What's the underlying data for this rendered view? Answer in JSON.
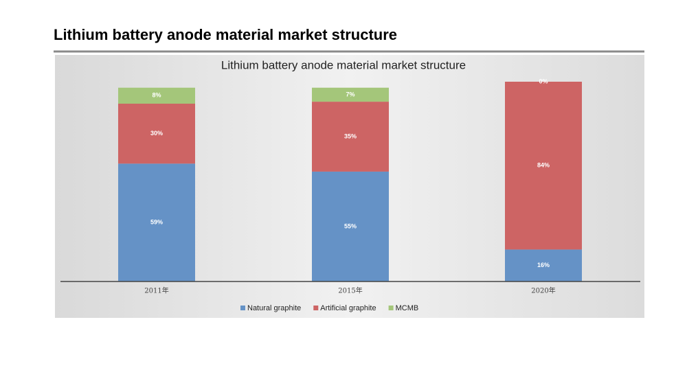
{
  "page_title": "Lithium battery anode material market structure",
  "chart_data": {
    "type": "stacked-bar",
    "title": "Lithium battery anode material market structure",
    "categories": [
      "2011年",
      "2015年",
      "2020年"
    ],
    "series": [
      {
        "name": "Natural graphite",
        "color": "#6592c6",
        "values": [
          59,
          55,
          16
        ],
        "value_labels": [
          "59%",
          "55%",
          "16%"
        ]
      },
      {
        "name": "Artificial graphite",
        "color": "#cd6464",
        "values": [
          30,
          35,
          84
        ],
        "value_labels": [
          "30%",
          "35%",
          "84%"
        ]
      },
      {
        "name": "MCMB",
        "color": "#a4c67a",
        "values": [
          8,
          7,
          0
        ],
        "value_labels": [
          "8%",
          "7%",
          "0%"
        ]
      }
    ],
    "ylim": [
      0,
      100
    ]
  }
}
